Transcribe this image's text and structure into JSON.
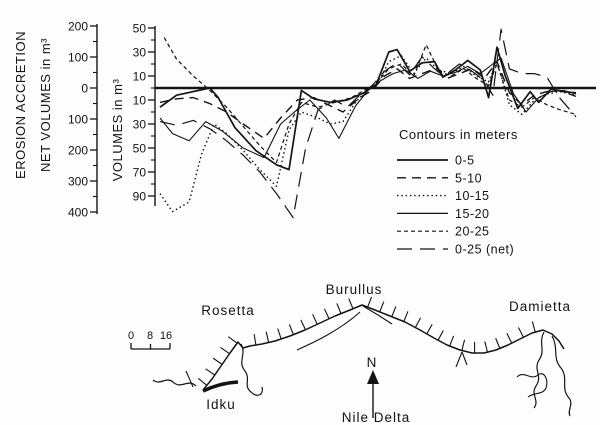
{
  "colors": {
    "ink": "#141414",
    "background": "#fdfdfd"
  },
  "chart_data": {
    "type": "line",
    "title": "",
    "x_axis": {
      "note": "unlabeled horizontal axis: position along Nile Delta coast, west to east",
      "range": [
        0,
        100
      ]
    },
    "left_axis": {
      "title": [
        "EROSION ACCRETION",
        "NET VOLUMES in m³"
      ],
      "tick_labels": [
        "200",
        "100",
        "0",
        "100",
        "200",
        "300",
        "400"
      ],
      "tick_values": [
        200,
        100,
        0,
        -100,
        -200,
        -300,
        -400
      ]
    },
    "volume_axis": {
      "title": "VOLUMES in m³",
      "tick_labels": [
        "50",
        "30",
        "10",
        "10",
        "30",
        "50",
        "70",
        "90"
      ],
      "tick_values": [
        50,
        30,
        10,
        -10,
        -30,
        -50,
        -70,
        -90
      ]
    },
    "zero_line": true,
    "ylim_volumes": [
      -110,
      50
    ],
    "legend": {
      "title": "Contours in meters",
      "position": "right-middle",
      "items": [
        "0-5",
        "5-10",
        "10-15",
        "15-20",
        "20-25",
        "0-25 (net)"
      ]
    },
    "series": [
      {
        "name": "0-5",
        "line": "solid",
        "width": 1.7,
        "dash": "",
        "points": [
          [
            0,
            -16
          ],
          [
            4,
            -6
          ],
          [
            8,
            -3
          ],
          [
            12,
            0
          ],
          [
            14,
            -8
          ],
          [
            18,
            -33
          ],
          [
            23,
            -52
          ],
          [
            28,
            -64
          ],
          [
            31,
            -68
          ],
          [
            34,
            -2
          ],
          [
            37,
            -9
          ],
          [
            41,
            -12
          ],
          [
            45,
            -10
          ],
          [
            49,
            -4
          ],
          [
            52,
            3
          ],
          [
            55,
            30
          ],
          [
            57,
            32
          ],
          [
            60,
            14
          ],
          [
            63,
            21
          ],
          [
            66,
            22
          ],
          [
            68,
            9
          ],
          [
            71,
            15
          ],
          [
            74,
            23
          ],
          [
            77,
            15
          ],
          [
            79,
            -8
          ],
          [
            81,
            34
          ],
          [
            83,
            10
          ],
          [
            86,
            -17
          ],
          [
            89,
            -3
          ],
          [
            91,
            -12
          ],
          [
            94,
            -1
          ],
          [
            97,
            -3
          ],
          [
            100,
            -4
          ]
        ]
      },
      {
        "name": "5-10",
        "line": "dashed",
        "width": 1.4,
        "dash": "9,6",
        "points": [
          [
            0,
            -12
          ],
          [
            4,
            -9
          ],
          [
            8,
            -8
          ],
          [
            12,
            -13
          ],
          [
            16,
            -20
          ],
          [
            20,
            -30
          ],
          [
            25,
            -42
          ],
          [
            29,
            -25
          ],
          [
            33,
            -10
          ],
          [
            37,
            -8
          ],
          [
            41,
            -15
          ],
          [
            44,
            -20
          ],
          [
            48,
            -8
          ],
          [
            51,
            -2
          ],
          [
            54,
            10
          ],
          [
            57,
            16
          ],
          [
            60,
            8
          ],
          [
            63,
            12
          ],
          [
            66,
            16
          ],
          [
            69,
            8
          ],
          [
            72,
            12
          ],
          [
            75,
            16
          ],
          [
            78,
            8
          ],
          [
            81,
            22
          ],
          [
            84,
            -4
          ],
          [
            87,
            -14
          ],
          [
            90,
            -6
          ],
          [
            93,
            -3
          ],
          [
            96,
            -2
          ],
          [
            100,
            -7
          ]
        ]
      },
      {
        "name": "10-15",
        "line": "dotted",
        "width": 1.4,
        "dash": "1.5,2.8",
        "points": [
          [
            0,
            -88
          ],
          [
            3,
            -103
          ],
          [
            7,
            -95
          ],
          [
            10,
            -55
          ],
          [
            13,
            -30
          ],
          [
            16,
            -38
          ],
          [
            20,
            -52
          ],
          [
            24,
            -68
          ],
          [
            28,
            -82
          ],
          [
            31,
            -35
          ],
          [
            34,
            -20
          ],
          [
            38,
            -25
          ],
          [
            41,
            -30
          ],
          [
            44,
            -28
          ],
          [
            47,
            -12
          ],
          [
            50,
            -1
          ],
          [
            53,
            8
          ],
          [
            55,
            22
          ],
          [
            58,
            27
          ],
          [
            61,
            12
          ],
          [
            64,
            25
          ],
          [
            67,
            15
          ],
          [
            70,
            12
          ],
          [
            73,
            18
          ],
          [
            76,
            10
          ],
          [
            79,
            5
          ],
          [
            81,
            22
          ],
          [
            84,
            -14
          ],
          [
            87,
            -22
          ],
          [
            90,
            -10
          ],
          [
            93,
            -5
          ],
          [
            96,
            -3
          ],
          [
            100,
            -6
          ]
        ]
      },
      {
        "name": "15-20",
        "line": "solid",
        "width": 1.1,
        "dash": "",
        "points": [
          [
            0,
            -25
          ],
          [
            3,
            -38
          ],
          [
            7,
            -44
          ],
          [
            11,
            -28
          ],
          [
            15,
            -36
          ],
          [
            20,
            -50
          ],
          [
            25,
            -58
          ],
          [
            29,
            -30
          ],
          [
            33,
            -18
          ],
          [
            36,
            -10
          ],
          [
            40,
            -25
          ],
          [
            43,
            -42
          ],
          [
            47,
            -15
          ],
          [
            50,
            -2
          ],
          [
            53,
            6
          ],
          [
            56,
            12
          ],
          [
            59,
            15
          ],
          [
            62,
            8
          ],
          [
            65,
            14
          ],
          [
            68,
            10
          ],
          [
            71,
            13
          ],
          [
            74,
            18
          ],
          [
            77,
            12
          ],
          [
            80,
            20
          ],
          [
            82,
            25
          ],
          [
            85,
            -5
          ],
          [
            88,
            -20
          ],
          [
            91,
            -8
          ],
          [
            94,
            -3
          ],
          [
            97,
            -2
          ],
          [
            100,
            -5
          ]
        ]
      },
      {
        "name": "20-25",
        "line": "fine-dashed",
        "width": 1.2,
        "dash": "4,3",
        "points": [
          [
            1,
            42
          ],
          [
            4,
            24
          ],
          [
            8,
            10
          ],
          [
            12,
            -2
          ],
          [
            16,
            -16
          ],
          [
            20,
            -32
          ],
          [
            24,
            -48
          ],
          [
            28,
            -62
          ],
          [
            31,
            -30
          ],
          [
            34,
            -12
          ],
          [
            38,
            -16
          ],
          [
            42,
            -12
          ],
          [
            46,
            -8
          ],
          [
            49,
            -2
          ],
          [
            52,
            4
          ],
          [
            55,
            16
          ],
          [
            58,
            20
          ],
          [
            61,
            10
          ],
          [
            64,
            36
          ],
          [
            67,
            14
          ],
          [
            70,
            10
          ],
          [
            73,
            16
          ],
          [
            76,
            8
          ],
          [
            79,
            2
          ],
          [
            81,
            20
          ],
          [
            84,
            -10
          ],
          [
            87,
            -16
          ],
          [
            90,
            -8
          ],
          [
            93,
            -14
          ],
          [
            96,
            -18
          ],
          [
            100,
            -22
          ]
        ]
      },
      {
        "name": "0-25 (net)",
        "line": "long-dashed",
        "width": 1.2,
        "dash": "15,8",
        "points": [
          [
            0,
            -28
          ],
          [
            4,
            -31
          ],
          [
            8,
            -27
          ],
          [
            12,
            -34
          ],
          [
            16,
            -44
          ],
          [
            20,
            -56
          ],
          [
            24,
            -70
          ],
          [
            28,
            -88
          ],
          [
            32,
            -108
          ],
          [
            35,
            -50
          ],
          [
            38,
            -18
          ],
          [
            42,
            -10
          ],
          [
            45,
            -16
          ],
          [
            48,
            -6
          ],
          [
            51,
            2
          ],
          [
            54,
            14
          ],
          [
            57,
            21
          ],
          [
            60,
            11
          ],
          [
            63,
            26
          ],
          [
            66,
            16
          ],
          [
            69,
            12
          ],
          [
            72,
            20
          ],
          [
            75,
            14
          ],
          [
            78,
            6
          ],
          [
            80,
            -6
          ],
          [
            82,
            49
          ],
          [
            84,
            16
          ],
          [
            87,
            12
          ],
          [
            90,
            12
          ],
          [
            93,
            9
          ],
          [
            96,
            -8
          ],
          [
            100,
            -24
          ]
        ]
      }
    ]
  },
  "map": {
    "labels": {
      "rosetta": "Rosetta",
      "burullus": "Burullus",
      "damietta": "Damietta",
      "idku": "Idku",
      "region": "Nile Delta",
      "north": "N"
    },
    "scale_bar": {
      "tick_labels": [
        "0",
        "8",
        "16"
      ]
    }
  }
}
